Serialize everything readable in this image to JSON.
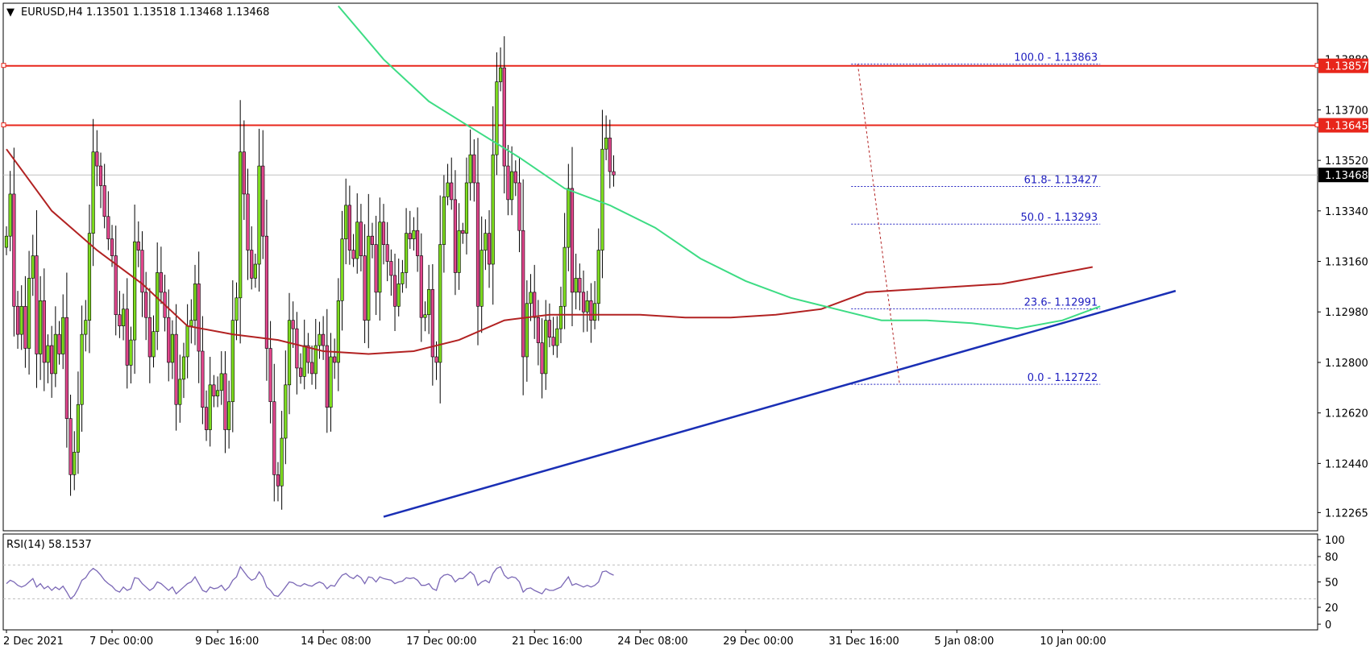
{
  "chart_data": [
    {
      "type": "candlestick",
      "header": {
        "symbol_timeframe": "EURUSD,H4",
        "open": "1.13501",
        "high": "1.13518",
        "low": "1.13468",
        "close": "1.13468"
      },
      "y_axis": {
        "range": [
          1.122,
          1.1408
        ],
        "ticks": [
          "1.13880",
          "1.13700",
          "1.13520",
          "1.13340",
          "1.13160",
          "1.12980",
          "1.12800",
          "1.12620",
          "1.12440",
          "1.12265"
        ]
      },
      "x_axis": {
        "range": [
          0,
          370
        ],
        "ticks": [
          {
            "label": "2 Dec 2021",
            "index": 0
          },
          {
            "label": "7 Dec 00:00",
            "index": 28
          },
          {
            "label": "9 Dec 16:00",
            "index": 56
          },
          {
            "label": "14 Dec 08:00",
            "index": 84
          },
          {
            "label": "17 Dec 00:00",
            "index": 112
          },
          {
            "label": "21 Dec 16:00",
            "index": 140
          },
          {
            "label": "24 Dec 08:00",
            "index": 168
          },
          {
            "label": "29 Dec 00:00",
            "index": 196
          },
          {
            "label": "31 Dec 16:00",
            "index": 224
          },
          {
            "label": "5 Jan 08:00",
            "index": 252
          },
          {
            "label": "10 Jan 00:00",
            "index": 280
          }
        ]
      },
      "colors": {
        "bull": "#7ddc1e",
        "bear": "#e0468c",
        "wick": "#000000",
        "ma_fast": "#3ddc84",
        "ma_slow": "#b22222",
        "trendline": "#1a2fb5",
        "horizontal_lines": "#e8261b",
        "fibonacci": "#2020c0",
        "rsi": "#7b68b6"
      },
      "horizontal_lines": [
        {
          "value": 1.13857,
          "label": "1.13857"
        },
        {
          "value": 1.13645,
          "label": "1.13645"
        }
      ],
      "current_price": {
        "value": 1.13468,
        "label": "1.13468"
      },
      "fibonacci": {
        "start_index": 224,
        "end_index": 290,
        "levels": [
          {
            "value": 1.13863,
            "label": "100.0 - 1.13863"
          },
          {
            "value": 1.13427,
            "label": "61.8- 1.13427"
          },
          {
            "value": 1.13293,
            "label": "50.0 - 1.13293"
          },
          {
            "value": 1.12991,
            "label": "23.6- 1.12991"
          },
          {
            "value": 1.12722,
            "label": "0.0 - 1.12722"
          }
        ]
      },
      "trendline": {
        "from": {
          "index": 100,
          "value": 1.1225
        },
        "to": {
          "index": 310,
          "value": 1.13055
        }
      },
      "fast_ma": [
        {
          "index": 88,
          "value": 1.1407
        },
        {
          "index": 100,
          "value": 1.1388
        },
        {
          "index": 112,
          "value": 1.1373
        },
        {
          "index": 124,
          "value": 1.1363
        },
        {
          "index": 136,
          "value": 1.1353
        },
        {
          "index": 148,
          "value": 1.1342
        },
        {
          "index": 160,
          "value": 1.1336
        },
        {
          "index": 172,
          "value": 1.1328
        },
        {
          "index": 184,
          "value": 1.1317
        },
        {
          "index": 196,
          "value": 1.1309
        },
        {
          "index": 208,
          "value": 1.1303
        },
        {
          "index": 220,
          "value": 1.1299
        },
        {
          "index": 232,
          "value": 1.1295
        },
        {
          "index": 244,
          "value": 1.1295
        },
        {
          "index": 256,
          "value": 1.1294
        },
        {
          "index": 268,
          "value": 1.1292
        },
        {
          "index": 280,
          "value": 1.1295
        },
        {
          "index": 290,
          "value": 1.13
        }
      ],
      "slow_ma": [
        {
          "index": 0,
          "value": 1.1356
        },
        {
          "index": 12,
          "value": 1.1334
        },
        {
          "index": 24,
          "value": 1.132
        },
        {
          "index": 36,
          "value": 1.1308
        },
        {
          "index": 48,
          "value": 1.1293
        },
        {
          "index": 60,
          "value": 1.129
        },
        {
          "index": 72,
          "value": 1.1288
        },
        {
          "index": 84,
          "value": 1.1284
        },
        {
          "index": 96,
          "value": 1.1283
        },
        {
          "index": 108,
          "value": 1.1284
        },
        {
          "index": 120,
          "value": 1.1288
        },
        {
          "index": 132,
          "value": 1.1295
        },
        {
          "index": 144,
          "value": 1.1297
        },
        {
          "index": 156,
          "value": 1.1297
        },
        {
          "index": 168,
          "value": 1.1297
        },
        {
          "index": 180,
          "value": 1.1296
        },
        {
          "index": 192,
          "value": 1.1296
        },
        {
          "index": 204,
          "value": 1.1297
        },
        {
          "index": 216,
          "value": 1.1299
        },
        {
          "index": 228,
          "value": 1.1305
        },
        {
          "index": 240,
          "value": 1.1306
        },
        {
          "index": 252,
          "value": 1.1307
        },
        {
          "index": 264,
          "value": 1.1308
        },
        {
          "index": 276,
          "value": 1.1311
        },
        {
          "index": 288,
          "value": 1.1314
        }
      ],
      "closes": [
        1.1325,
        1.134,
        1.13,
        1.129,
        1.13,
        1.1285,
        1.131,
        1.1318,
        1.1283,
        1.1302,
        1.128,
        1.1286,
        1.1276,
        1.129,
        1.1283,
        1.1296,
        1.126,
        1.124,
        1.1248,
        1.1265,
        1.129,
        1.1295,
        1.1326,
        1.1355,
        1.135,
        1.1343,
        1.1332,
        1.1324,
        1.1318,
        1.1297,
        1.1293,
        1.1299,
        1.1279,
        1.1288,
        1.1323,
        1.132,
        1.1305,
        1.1296,
        1.1282,
        1.1291,
        1.1312,
        1.1305,
        1.1296,
        1.128,
        1.129,
        1.1265,
        1.1274,
        1.1282,
        1.1293,
        1.1295,
        1.1308,
        1.1284,
        1.1264,
        1.1256,
        1.1272,
        1.1268,
        1.127,
        1.1276,
        1.1256,
        1.1266,
        1.1295,
        1.1303,
        1.1355,
        1.134,
        1.132,
        1.131,
        1.1315,
        1.135,
        1.1325,
        1.1285,
        1.1266,
        1.124,
        1.1236,
        1.1253,
        1.1272,
        1.1295,
        1.1292,
        1.1278,
        1.1275,
        1.1286,
        1.128,
        1.1276,
        1.1286,
        1.129,
        1.1286,
        1.1264,
        1.1282,
        1.128,
        1.1302,
        1.1324,
        1.1336,
        1.132,
        1.1317,
        1.133,
        1.1318,
        1.1295,
        1.1325,
        1.1322,
        1.1305,
        1.133,
        1.1322,
        1.1316,
        1.1311,
        1.13,
        1.1308,
        1.1312,
        1.1326,
        1.1324,
        1.1327,
        1.1318,
        1.1296,
        1.1297,
        1.1306,
        1.1282,
        1.128,
        1.1322,
        1.1339,
        1.1344,
        1.1338,
        1.1312,
        1.1327,
        1.1326,
        1.1344,
        1.1354,
        1.1344,
        1.13,
        1.132,
        1.1326,
        1.1315,
        1.1354,
        1.138,
        1.1385,
        1.135,
        1.1338,
        1.1348,
        1.1344,
        1.1327,
        1.1282,
        1.1301,
        1.1305,
        1.1296,
        1.1287,
        1.1276,
        1.1295,
        1.1289,
        1.1286,
        1.1292,
        1.13,
        1.1321,
        1.1342,
        1.1305,
        1.131,
        1.1305,
        1.1298,
        1.1302,
        1.1295,
        1.1301,
        1.132,
        1.1356,
        1.136,
        1.1348,
        1.13468
      ],
      "rsi": {
        "label": "RSI(14)",
        "value": "58.1537",
        "range": [
          0,
          100
        ],
        "ticks": [
          "100",
          "80",
          "50",
          "20",
          "0"
        ],
        "levels": [
          70,
          30
        ],
        "points": [
          48,
          52,
          50,
          46,
          44,
          46,
          50,
          54,
          44,
          48,
          42,
          45,
          40,
          44,
          41,
          45,
          38,
          30,
          34,
          42,
          52,
          55,
          62,
          66,
          63,
          58,
          52,
          48,
          45,
          40,
          38,
          44,
          40,
          42,
          55,
          54,
          48,
          44,
          40,
          43,
          50,
          48,
          44,
          40,
          44,
          36,
          40,
          44,
          48,
          50,
          56,
          48,
          40,
          38,
          44,
          42,
          43,
          46,
          40,
          44,
          52,
          56,
          68,
          62,
          56,
          52,
          54,
          62,
          56,
          44,
          40,
          34,
          33,
          38,
          44,
          50,
          49,
          46,
          45,
          48,
          46,
          45,
          48,
          50,
          48,
          42,
          46,
          45,
          52,
          58,
          60,
          56,
          54,
          58,
          55,
          48,
          56,
          55,
          50,
          56,
          54,
          53,
          52,
          48,
          50,
          51,
          55,
          54,
          55,
          52,
          46,
          46,
          48,
          42,
          40,
          54,
          58,
          59,
          57,
          50,
          54,
          54,
          58,
          62,
          58,
          46,
          50,
          52,
          49,
          60,
          66,
          68,
          58,
          54,
          56,
          55,
          50,
          38,
          42,
          43,
          40,
          38,
          36,
          42,
          40,
          40,
          42,
          44,
          50,
          56,
          46,
          48,
          46,
          44,
          46,
          44,
          46,
          50,
          62,
          63,
          60,
          58
        ]
      }
    }
  ]
}
